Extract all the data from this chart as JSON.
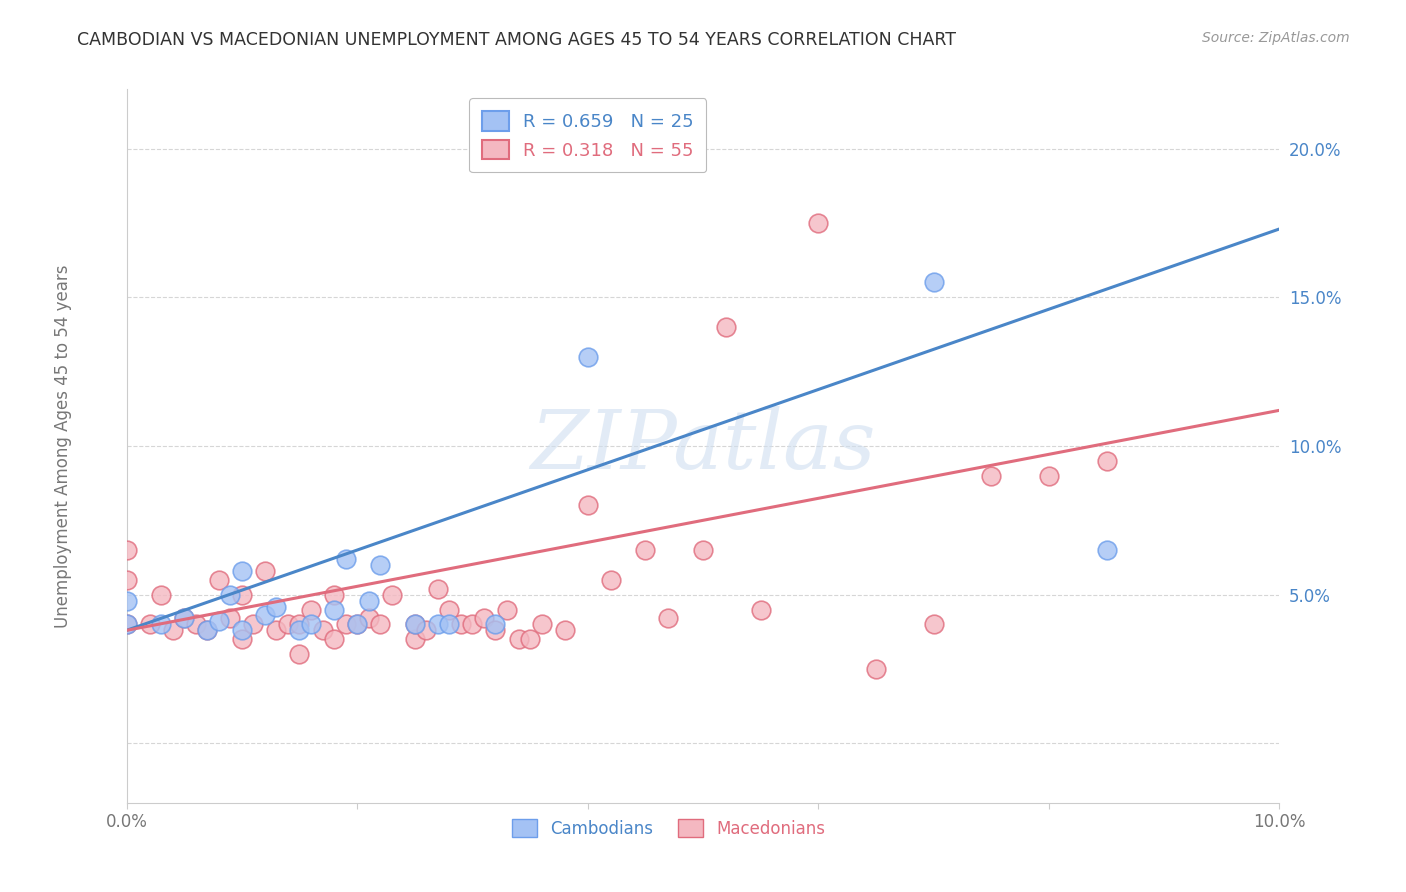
{
  "title": "CAMBODIAN VS MACEDONIAN UNEMPLOYMENT AMONG AGES 45 TO 54 YEARS CORRELATION CHART",
  "source": "Source: ZipAtlas.com",
  "ylabel": "Unemployment Among Ages 45 to 54 years",
  "xlim": [
    0.0,
    0.1
  ],
  "ylim": [
    -0.02,
    0.22
  ],
  "xticks": [
    0.0,
    0.02,
    0.04,
    0.06,
    0.08,
    0.1
  ],
  "xticklabels": [
    "0.0%",
    "",
    "",
    "",
    "",
    "10.0%"
  ],
  "ytick_positions": [
    0.0,
    0.05,
    0.1,
    0.15,
    0.2
  ],
  "yticklabels": [
    "",
    "5.0%",
    "10.0%",
    "15.0%",
    "20.0%"
  ],
  "cambodian_R": "0.659",
  "cambodian_N": "25",
  "macedonian_R": "0.318",
  "macedonian_N": "55",
  "cambodian_color": "#a4c2f4",
  "macedonian_color": "#f4b8c1",
  "cambodian_edge_color": "#6d9eeb",
  "macedonian_edge_color": "#e06c7d",
  "cambodian_line_color": "#4a86c8",
  "macedonian_line_color": "#e06c7d",
  "legend_text_cambodian_color": "#4a86c8",
  "legend_text_macedonian_color": "#e06c7d",
  "watermark": "ZIPatlas",
  "background_color": "#ffffff",
  "cam_line_x0": 0.0,
  "cam_line_y0": 0.038,
  "cam_line_x1": 0.1,
  "cam_line_y1": 0.173,
  "mac_line_x0": 0.0,
  "mac_line_y0": 0.038,
  "mac_line_x1": 0.1,
  "mac_line_y1": 0.112,
  "cambodian_scatter_x": [
    0.0,
    0.0,
    0.003,
    0.005,
    0.007,
    0.008,
    0.009,
    0.01,
    0.01,
    0.012,
    0.013,
    0.015,
    0.016,
    0.018,
    0.019,
    0.02,
    0.021,
    0.022,
    0.025,
    0.027,
    0.028,
    0.032,
    0.04,
    0.07,
    0.085
  ],
  "cambodian_scatter_y": [
    0.04,
    0.048,
    0.04,
    0.042,
    0.038,
    0.041,
    0.05,
    0.038,
    0.058,
    0.043,
    0.046,
    0.038,
    0.04,
    0.045,
    0.062,
    0.04,
    0.048,
    0.06,
    0.04,
    0.04,
    0.04,
    0.04,
    0.13,
    0.155,
    0.065
  ],
  "macedonian_scatter_x": [
    0.0,
    0.0,
    0.0,
    0.002,
    0.003,
    0.004,
    0.005,
    0.006,
    0.007,
    0.008,
    0.009,
    0.01,
    0.01,
    0.011,
    0.012,
    0.013,
    0.014,
    0.015,
    0.015,
    0.016,
    0.017,
    0.018,
    0.018,
    0.019,
    0.02,
    0.021,
    0.022,
    0.023,
    0.025,
    0.025,
    0.026,
    0.027,
    0.028,
    0.029,
    0.03,
    0.031,
    0.032,
    0.033,
    0.034,
    0.035,
    0.036,
    0.038,
    0.04,
    0.042,
    0.045,
    0.047,
    0.05,
    0.052,
    0.055,
    0.06,
    0.065,
    0.07,
    0.075,
    0.08,
    0.085
  ],
  "macedonian_scatter_y": [
    0.04,
    0.055,
    0.065,
    0.04,
    0.05,
    0.038,
    0.042,
    0.04,
    0.038,
    0.055,
    0.042,
    0.035,
    0.05,
    0.04,
    0.058,
    0.038,
    0.04,
    0.03,
    0.04,
    0.045,
    0.038,
    0.035,
    0.05,
    0.04,
    0.04,
    0.042,
    0.04,
    0.05,
    0.035,
    0.04,
    0.038,
    0.052,
    0.045,
    0.04,
    0.04,
    0.042,
    0.038,
    0.045,
    0.035,
    0.035,
    0.04,
    0.038,
    0.08,
    0.055,
    0.065,
    0.042,
    0.065,
    0.14,
    0.045,
    0.175,
    0.025,
    0.04,
    0.09,
    0.09,
    0.095
  ]
}
